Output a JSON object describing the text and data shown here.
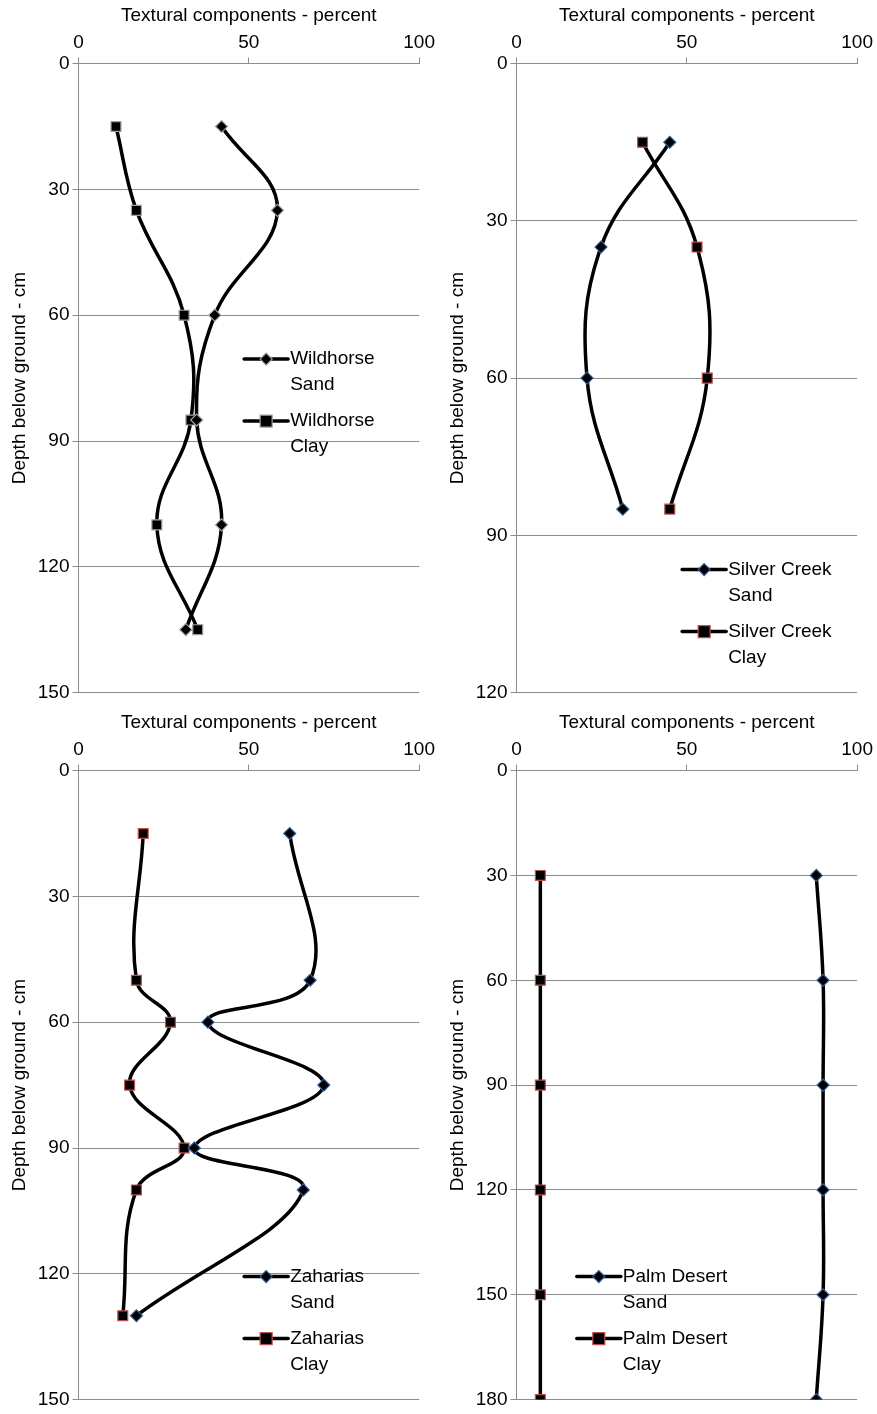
{
  "chart_data": [
    {
      "type": "line",
      "xlabel": "Textural components - percent",
      "ylabel": "Depth below ground - cm",
      "xlim": [
        0,
        100
      ],
      "xticks": [
        0,
        50,
        100
      ],
      "ylim": [
        150,
        0
      ],
      "yticks": [
        0,
        30,
        60,
        90,
        120,
        150
      ],
      "grid": "y",
      "legend": "right",
      "series": [
        {
          "name": "Wildhorse Sand",
          "color": "#000000",
          "marker": "diamond",
          "x": [
            42,
            58.4,
            40,
            34.7,
            42,
            31.5
          ],
          "values": [
            15,
            35,
            60,
            85,
            110,
            135
          ]
        },
        {
          "name": "Wildhorse Clay",
          "color": "#000000",
          "marker": "square",
          "x": [
            11,
            17,
            31,
            33,
            23,
            35
          ],
          "values": [
            15,
            35,
            60,
            85,
            110,
            135
          ]
        }
      ]
    },
    {
      "type": "line",
      "xlabel": "Textural components - percent",
      "ylabel": "Depth below ground - cm",
      "xlim": [
        0,
        100
      ],
      "xticks": [
        0,
        50,
        100
      ],
      "ylim": [
        120,
        0
      ],
      "yticks": [
        0,
        30,
        60,
        90,
        120
      ],
      "grid": "y",
      "legend": "bottom right",
      "series": [
        {
          "name": "Silver Creek Sand",
          "color": "#000000",
          "marker": "diamond",
          "x": [
            45,
            24.8,
            20.7,
            31.2
          ],
          "values": [
            15,
            35,
            60,
            85
          ]
        },
        {
          "name": "Silver Creek Clay",
          "color": "#000000",
          "marker": "square",
          "x": [
            37,
            53,
            56,
            45
          ],
          "values": [
            15,
            35,
            60,
            85
          ]
        }
      ]
    },
    {
      "type": "line",
      "xlabel": "Textural components - percent",
      "ylabel": "Depth below ground - cm",
      "xlim": [
        0,
        100
      ],
      "xticks": [
        0,
        50,
        100
      ],
      "ylim": [
        150,
        0
      ],
      "yticks": [
        0,
        30,
        60,
        90,
        120,
        150
      ],
      "grid": "y",
      "legend": "bottom right",
      "series": [
        {
          "name": "Zaharias Sand",
          "color": "#000000",
          "marker": "diamond",
          "x": [
            62,
            68,
            38,
            72,
            34,
            66,
            17
          ],
          "values": [
            15,
            50,
            60,
            75,
            90,
            100,
            130
          ]
        },
        {
          "name": "Zaharias Clay",
          "color": "#000000",
          "marker": "square",
          "x": [
            19,
            17,
            27,
            15,
            31,
            17,
            13
          ],
          "values": [
            15,
            50,
            60,
            75,
            90,
            100,
            130
          ]
        }
      ]
    },
    {
      "type": "line",
      "xlabel": "Textural components - percent",
      "ylabel": "Depth below ground - cm",
      "xlim": [
        0,
        100
      ],
      "xticks": [
        0,
        50,
        100
      ],
      "ylim": [
        180,
        0
      ],
      "yticks": [
        0,
        30,
        60,
        90,
        120,
        150,
        180
      ],
      "grid": "y",
      "legend": "bottom",
      "series": [
        {
          "name": "Palm Desert Sand",
          "color": "#000000",
          "marker": "diamond",
          "x": [
            88,
            90,
            90,
            90,
            90,
            88
          ],
          "values": [
            30,
            60,
            90,
            120,
            150,
            180
          ]
        },
        {
          "name": "Palm Desert Clay",
          "color": "#000000",
          "marker": "square",
          "x": [
            7,
            7,
            7,
            7,
            7,
            7
          ],
          "values": [
            30,
            60,
            90,
            120,
            150,
            180
          ]
        }
      ]
    }
  ]
}
